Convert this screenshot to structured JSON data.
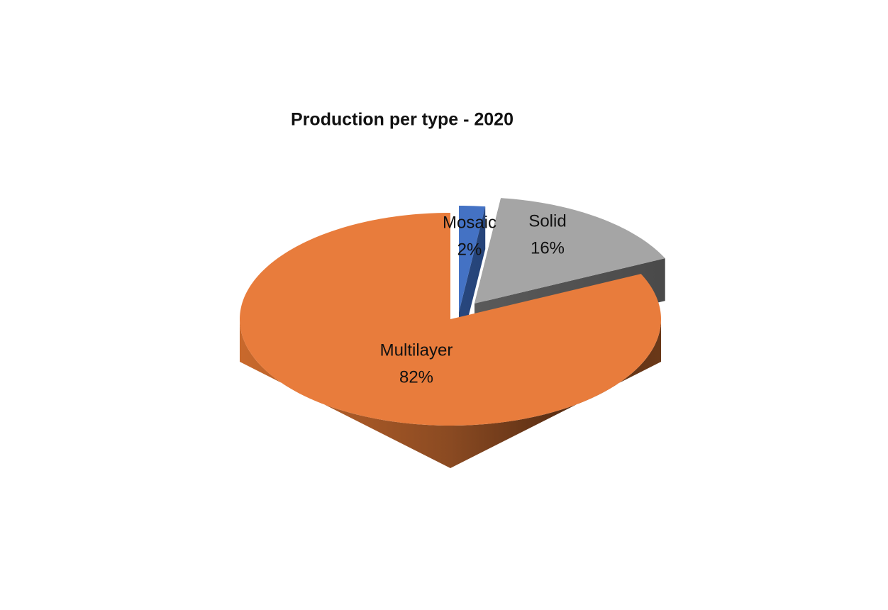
{
  "chart_data": {
    "type": "pie3d",
    "title": "Production per type - 2020",
    "categories": [
      "Mosaic",
      "Solid",
      "Multilayer"
    ],
    "values": [
      2,
      16,
      82
    ],
    "value_labels": [
      "2%",
      "16%",
      "82%"
    ],
    "colors": [
      "#4472c4",
      "#a5a5a5",
      "#e87c3c"
    ]
  }
}
